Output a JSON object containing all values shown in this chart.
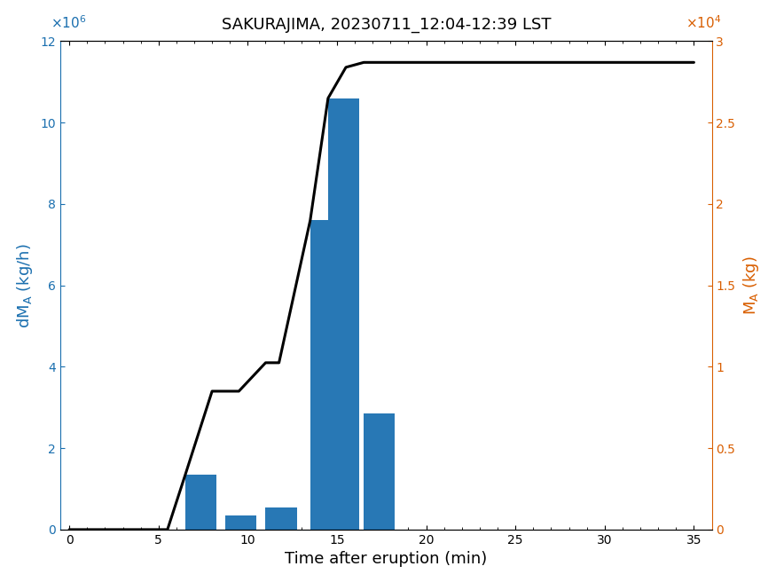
{
  "title": "SAKURAJIMA, 20230711_12:04-12:39 LST",
  "xlabel": "Time after eruption (min)",
  "ylabel_left": "dM$_A$ (kg/h)",
  "ylabel_right": "M$_A$ (kg)",
  "bar_left_edges": [
    6.5,
    8.75,
    11.0,
    13.5,
    14.5,
    16.5
  ],
  "bar_heights": [
    1350000,
    350000,
    550000,
    7600000,
    10600000,
    2850000
  ],
  "bar_width": 1.75,
  "bar_color": "#2878b5",
  "xlim": [
    -0.5,
    36
  ],
  "ylim_left": [
    0,
    12000000
  ],
  "ylim_right": [
    0,
    30000
  ],
  "xticks": [
    0,
    5,
    10,
    15,
    20,
    25,
    30,
    35
  ],
  "line_color": "#000000",
  "line_width": 2.2,
  "cum_x": [
    0,
    5.5,
    6.5,
    8.0,
    9.5,
    11.0,
    11.75,
    13.5,
    14.5,
    15.5,
    16.5,
    17.0,
    18.5,
    35
  ],
  "cum_y": [
    0,
    0,
    3375,
    8500,
    8500,
    10250,
    10250,
    19000,
    26500,
    28400,
    28700,
    28700,
    28700,
    28700
  ]
}
